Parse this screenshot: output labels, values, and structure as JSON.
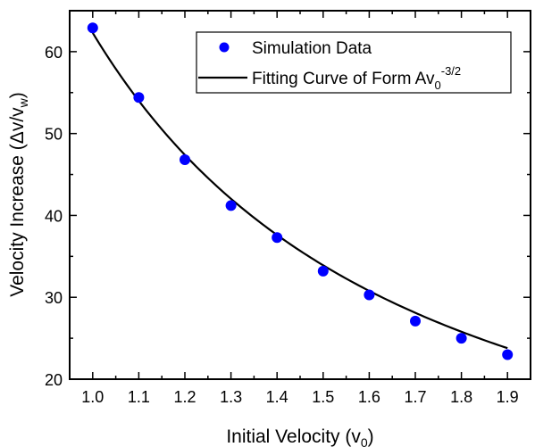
{
  "chart_data": {
    "type": "scatter",
    "xlabel": "Initial Velocity (v",
    "xlabel_sub": "0",
    "xlabel_close": ")",
    "ylabel": "Velocity Increase (Δv/v",
    "ylabel_sub": "w",
    "ylabel_close": ")",
    "xlim": [
      0.95,
      1.95
    ],
    "ylim": [
      20,
      65
    ],
    "xticks": [
      1.0,
      1.1,
      1.2,
      1.3,
      1.4,
      1.5,
      1.6,
      1.7,
      1.8,
      1.9
    ],
    "yticks": [
      20,
      30,
      40,
      50,
      60
    ],
    "grid": false,
    "legend_position": "top-right",
    "series": [
      {
        "name": "Simulation Data",
        "kind": "scatter",
        "color": "#0000ff",
        "x": [
          1.0,
          1.1,
          1.2,
          1.3,
          1.4,
          1.5,
          1.6,
          1.7,
          1.8,
          1.9
        ],
        "y": [
          62.9,
          54.4,
          46.8,
          41.2,
          37.3,
          33.2,
          30.3,
          27.1,
          25.0,
          23.0
        ]
      },
      {
        "name": "Fitting Curve of Form Av",
        "name_sub": "0",
        "name_sup": "-3/2",
        "kind": "line",
        "color": "#000000",
        "A": 62.3,
        "exponent": -1.5
      }
    ]
  }
}
